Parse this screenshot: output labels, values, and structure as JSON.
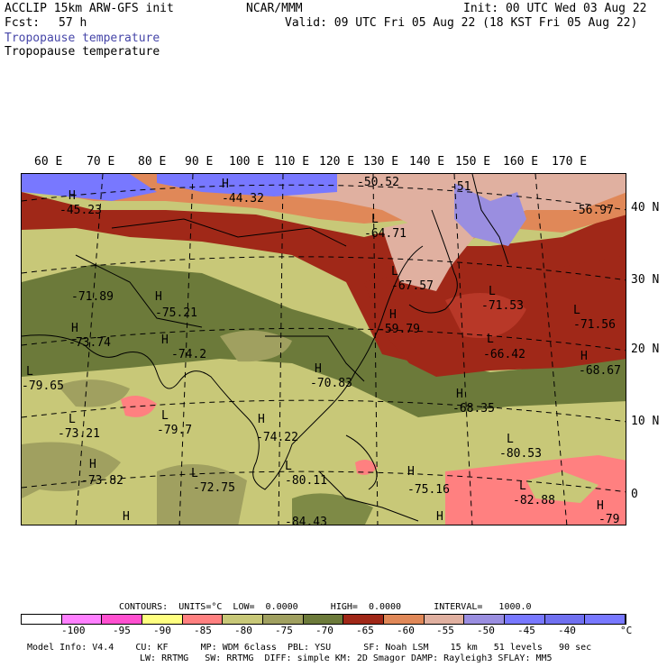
{
  "header": {
    "model": "ACCLIP 15km ARW-GFS init",
    "fcst_label": "Fcst:",
    "fcst_value": "57 h",
    "org": "NCAR/MMM",
    "init": "Init: 00 UTC Wed 03 Aug 22",
    "valid": "Valid: 09 UTC Fri 05 Aug 22 (18 KST Fri 05 Aug 22)",
    "field_title_1": "Tropopause temperature",
    "field_title_2": "Tropopause temperature",
    "field_title_1_color": "#4646a8"
  },
  "map": {
    "lon_labels": [
      "60 E",
      "70 E",
      "80 E",
      "90 E",
      "100 E",
      "110 E",
      "120 E",
      "130 E",
      "140 E",
      "150 E",
      "160 E",
      "170 E"
    ],
    "lat_labels": [
      "40 N",
      "30 N",
      "20 N",
      "10 N",
      "0"
    ],
    "pressure_labels": [
      {
        "sym": "H",
        "val": "-45.23"
      },
      {
        "sym": "H",
        "val": "-44.32"
      },
      {
        "sym": "",
        "val": "-50.52"
      },
      {
        "sym": "",
        "val": "-51"
      },
      {
        "sym": "",
        "val": "-56.97"
      },
      {
        "sym": "L",
        "val": "-64.71"
      },
      {
        "sym": "L",
        "val": "-67.57"
      },
      {
        "sym": "",
        "val": "-71.89"
      },
      {
        "sym": "H",
        "val": "-75.21"
      },
      {
        "sym": "H",
        "val": "-73.74"
      },
      {
        "sym": "H",
        "val": "-74.2"
      },
      {
        "sym": "L",
        "val": "-79.65"
      },
      {
        "sym": "H",
        "val": "-59.79"
      },
      {
        "sym": "L",
        "val": "-71.53"
      },
      {
        "sym": "L",
        "val": "-71.56"
      },
      {
        "sym": "L",
        "val": "-66.42"
      },
      {
        "sym": "H",
        "val": "-68.67"
      },
      {
        "sym": "H",
        "val": "-70.83"
      },
      {
        "sym": "H",
        "val": "-68.35"
      },
      {
        "sym": "L",
        "val": "-79.7"
      },
      {
        "sym": "L",
        "val": "-73.21"
      },
      {
        "sym": "H",
        "val": "-74.22"
      },
      {
        "sym": "L",
        "val": "-80.53"
      },
      {
        "sym": "H",
        "val": "-73.82"
      },
      {
        "sym": "L",
        "val": "-72.75"
      },
      {
        "sym": "L",
        "val": "-80.11"
      },
      {
        "sym": "H",
        "val": "-75.16"
      },
      {
        "sym": "L",
        "val": "-82.88"
      },
      {
        "sym": "H",
        "val": "-79"
      },
      {
        "sym": "",
        "val": "-84.43"
      },
      {
        "sym": "H",
        "val": ""
      },
      {
        "sym": "H",
        "val": ""
      }
    ]
  },
  "contours_line": "CONTOURS:  UNITS=°C  LOW=  0.0000      HIGH=  0.0000      INTERVAL=   1000.0",
  "colorbar": {
    "colors": [
      "#ffffff",
      "#ff80ff",
      "#ff50d0",
      "#ffff80",
      "#ff8080",
      "#c8c878",
      "#a0a060",
      "#6c7a3a",
      "#a02818",
      "#e08858",
      "#e0b0a0",
      "#9a8ee0",
      "#7878ff",
      "#7070f0",
      "#7878ff"
    ],
    "ticks": [
      "-100",
      "-95",
      "-90",
      "-85",
      "-80",
      "-75",
      "-70",
      "-65",
      "-60",
      "-55",
      "-50",
      "-45",
      "-40",
      "°C"
    ]
  },
  "footer": {
    "line1": "Model Info: V4.4    CU: KF      MP: WDM 6class  PBL: YSU      SF: Noah LSM    15 km   51 levels   90 sec",
    "line2": "LW: RRTMG   SW: RRTMG  DIFF: simple KM: 2D Smagor DAMP: Rayleigh3 SFLAY: MM5"
  }
}
